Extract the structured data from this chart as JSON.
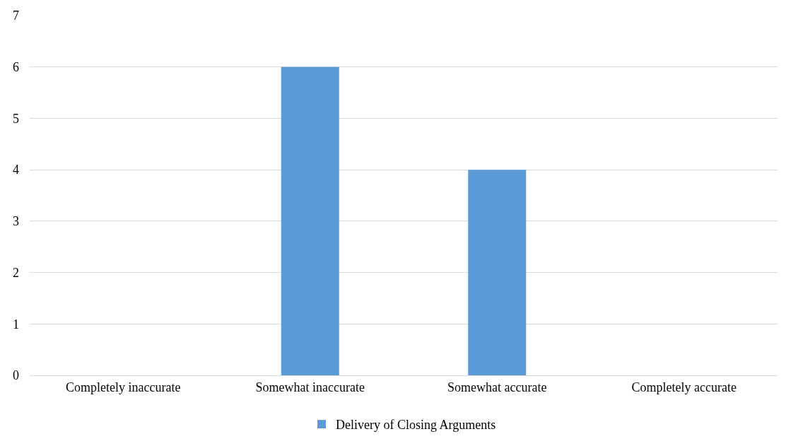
{
  "chart_data": {
    "type": "bar",
    "categories": [
      "Completely inaccurate",
      "Somewhat inaccurate",
      "Somewhat accurate",
      "Completely accurate"
    ],
    "series": [
      {
        "name": "Delivery of Closing Arguments",
        "color": "#5b9bd5",
        "values": [
          0,
          6,
          4,
          0
        ]
      }
    ],
    "ylim": [
      0,
      7
    ],
    "yticks": [
      0,
      1,
      2,
      3,
      4,
      5,
      6,
      7
    ],
    "grid": "y",
    "legend": "bottom"
  }
}
